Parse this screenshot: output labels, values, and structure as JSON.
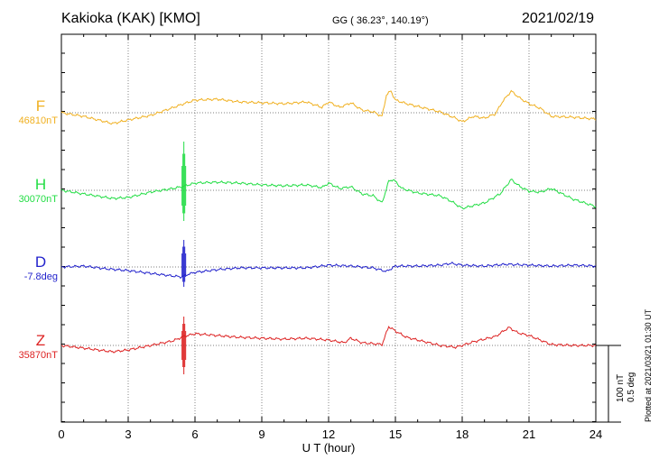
{
  "header": {
    "station": "Kakioka (KAK)  [KMO]",
    "coords": "GG ( 36.23°, 140.19°)",
    "date": "2021/02/19"
  },
  "footer": {
    "plotted": "Plotted at 2021/03/21 01:30 UT",
    "scale_line1": "100 nT",
    "scale_line2": "0.5 deg"
  },
  "chart_data": {
    "type": "line",
    "xlabel": "U T (hour)",
    "xlim": [
      0,
      24
    ],
    "xticks": [
      0,
      3,
      6,
      9,
      12,
      15,
      18,
      21,
      24
    ],
    "scale": "100 nT / 0.5 deg per scale bar",
    "series": [
      {
        "name": "F",
        "baseline_label": "46810nT",
        "color": "#f0b020",
        "offset": [
          [
            0,
            0
          ],
          [
            1,
            -4
          ],
          [
            2.3,
            -12
          ],
          [
            3,
            -8
          ],
          [
            4,
            -3
          ],
          [
            4.7,
            3
          ],
          [
            5.5,
            10
          ],
          [
            6,
            14
          ],
          [
            7,
            15
          ],
          [
            8,
            12
          ],
          [
            9,
            11
          ],
          [
            10,
            10
          ],
          [
            11,
            12
          ],
          [
            11.7,
            6
          ],
          [
            12,
            12
          ],
          [
            12.5,
            6
          ],
          [
            13,
            11
          ],
          [
            13.5,
            3
          ],
          [
            14,
            1
          ],
          [
            14.4,
            -4
          ],
          [
            14.6,
            20
          ],
          [
            14.8,
            24
          ],
          [
            15,
            14
          ],
          [
            15.5,
            10
          ],
          [
            16,
            7
          ],
          [
            17,
            1
          ],
          [
            17.7,
            -6
          ],
          [
            18,
            -10
          ],
          [
            18.5,
            -4
          ],
          [
            19,
            -6
          ],
          [
            19.5,
            -1
          ],
          [
            19.8,
            12
          ],
          [
            20.2,
            24
          ],
          [
            20.6,
            16
          ],
          [
            21,
            10
          ],
          [
            21.5,
            5
          ],
          [
            22,
            -4
          ],
          [
            23,
            -5
          ],
          [
            24,
            -7
          ]
        ]
      },
      {
        "name": "H",
        "baseline_label": "30070nT",
        "color": "#22dd44",
        "offset": [
          [
            0,
            0
          ],
          [
            1,
            -4
          ],
          [
            2.3,
            -9
          ],
          [
            3,
            -8
          ],
          [
            4,
            -2
          ],
          [
            5,
            2
          ],
          [
            5.4,
            4
          ],
          [
            6,
            8
          ],
          [
            7,
            9
          ],
          [
            8,
            8
          ],
          [
            9,
            6
          ],
          [
            10,
            5
          ],
          [
            11,
            6
          ],
          [
            11.7,
            3
          ],
          [
            12,
            8
          ],
          [
            12.5,
            2
          ],
          [
            13,
            4
          ],
          [
            13.5,
            -4
          ],
          [
            14,
            -6
          ],
          [
            14.4,
            -14
          ],
          [
            14.7,
            10
          ],
          [
            14.9,
            12
          ],
          [
            15.3,
            2
          ],
          [
            16,
            -3
          ],
          [
            17,
            -6
          ],
          [
            17.5,
            -12
          ],
          [
            18,
            -20
          ],
          [
            19,
            -14
          ],
          [
            19.7,
            -4
          ],
          [
            20.2,
            12
          ],
          [
            20.6,
            4
          ],
          [
            21,
            -1
          ],
          [
            21.5,
            -2
          ],
          [
            22,
            2
          ],
          [
            22.5,
            -4
          ],
          [
            23,
            -10
          ],
          [
            24,
            -18
          ]
        ],
        "spike": [
          5.5,
          54,
          -34
        ]
      },
      {
        "name": "D",
        "baseline_label": "-7.8deg",
        "color": "#2222cc",
        "offset": [
          [
            0,
            0
          ],
          [
            1,
            1
          ],
          [
            2,
            -2
          ],
          [
            3,
            -4
          ],
          [
            4,
            -7
          ],
          [
            5,
            -10
          ],
          [
            5.4,
            -11
          ],
          [
            5.7,
            -8
          ],
          [
            6,
            -6
          ],
          [
            7,
            -3
          ],
          [
            8,
            -1
          ],
          [
            9,
            -1
          ],
          [
            10,
            -1
          ],
          [
            11,
            -1
          ],
          [
            12,
            2
          ],
          [
            13,
            1
          ],
          [
            14,
            -1
          ],
          [
            14.6,
            -5
          ],
          [
            15,
            1
          ],
          [
            16,
            1
          ],
          [
            17,
            2
          ],
          [
            17.5,
            4
          ],
          [
            18,
            2
          ],
          [
            19,
            1
          ],
          [
            20,
            3
          ],
          [
            21,
            2
          ],
          [
            22,
            1
          ],
          [
            23,
            2
          ],
          [
            24,
            1
          ]
        ],
        "spike": [
          5.5,
          30,
          -22
        ]
      },
      {
        "name": "Z",
        "baseline_label": "35870nT",
        "color": "#dd2222",
        "offset": [
          [
            0,
            0
          ],
          [
            1,
            -3
          ],
          [
            2.3,
            -7
          ],
          [
            3,
            -5
          ],
          [
            4,
            0
          ],
          [
            5,
            5
          ],
          [
            5.5,
            10
          ],
          [
            6,
            13
          ],
          [
            7,
            11
          ],
          [
            8,
            9
          ],
          [
            9,
            8
          ],
          [
            10,
            7
          ],
          [
            11,
            8
          ],
          [
            12,
            6
          ],
          [
            12.7,
            3
          ],
          [
            13,
            8
          ],
          [
            13.5,
            3
          ],
          [
            14,
            2
          ],
          [
            14.4,
            1
          ],
          [
            14.7,
            21
          ],
          [
            15,
            16
          ],
          [
            15.5,
            9
          ],
          [
            16,
            6
          ],
          [
            17,
            0
          ],
          [
            17.7,
            -2
          ],
          [
            18,
            0
          ],
          [
            18.5,
            4
          ],
          [
            19,
            7
          ],
          [
            19.5,
            10
          ],
          [
            20.1,
            20
          ],
          [
            20.5,
            14
          ],
          [
            21,
            11
          ],
          [
            21.5,
            6
          ],
          [
            22,
            1
          ],
          [
            23,
            0
          ],
          [
            24,
            0
          ]
        ],
        "spike": [
          5.5,
          32,
          -32
        ]
      }
    ]
  }
}
